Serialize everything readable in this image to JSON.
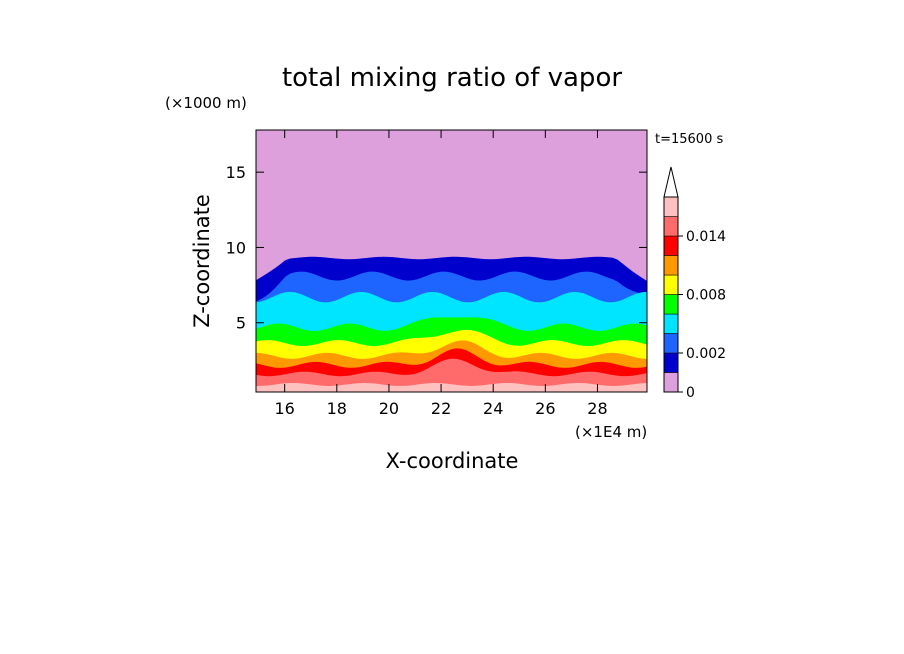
{
  "chart_data": {
    "type": "heatmap",
    "title": "total mixing ratio of vapor",
    "xlabel": "X-coordinate",
    "ylabel": "Z-coordinate",
    "x_unit": "(×1E4 m)",
    "y_unit": "(×1000 m)",
    "time_label": "t=15600 s",
    "xlim": [
      14.9,
      29.9
    ],
    "ylim": [
      0.4,
      17.8
    ],
    "x_ticks": [
      16,
      18,
      20,
      22,
      24,
      26,
      28
    ],
    "y_ticks": [
      5,
      10,
      15
    ],
    "colorbar": {
      "levels": [
        0,
        0.001,
        0.002,
        0.004,
        0.006,
        0.008,
        0.01,
        0.012,
        0.014,
        0.016
      ],
      "labeled_levels": [
        {
          "value": 0,
          "text": "0"
        },
        {
          "value": 0.002,
          "text": "0.002"
        },
        {
          "value": 0.008,
          "text": "0.008"
        },
        {
          "value": 0.014,
          "text": "0.014"
        }
      ],
      "colors": [
        "#dda0dd",
        "#0000cd",
        "#1e64ff",
        "#00e5ff",
        "#00ff00",
        "#ffff00",
        "#ff9900",
        "#ff0000",
        "#ff6b6b",
        "#ffc0c0"
      ],
      "extend": "max"
    },
    "bands": [
      {
        "level": 0,
        "base": 9.3,
        "amp": 0.08
      },
      {
        "level": 1,
        "base": 8.1,
        "amp": 0.3
      },
      {
        "level": 2,
        "base": 6.7,
        "amp": 0.35
      },
      {
        "level": 3,
        "base": 4.7,
        "amp": 0.25
      },
      {
        "level": 4,
        "base": 3.65,
        "amp": 0.2
      },
      {
        "level": 5,
        "base": 2.8,
        "amp": 0.2
      },
      {
        "level": 6,
        "base": 2.2,
        "amp": 0.2
      },
      {
        "level": 7,
        "base": 1.6,
        "amp": 0.15
      },
      {
        "level": 8,
        "base": 0.9,
        "amp": 0.1
      }
    ]
  }
}
